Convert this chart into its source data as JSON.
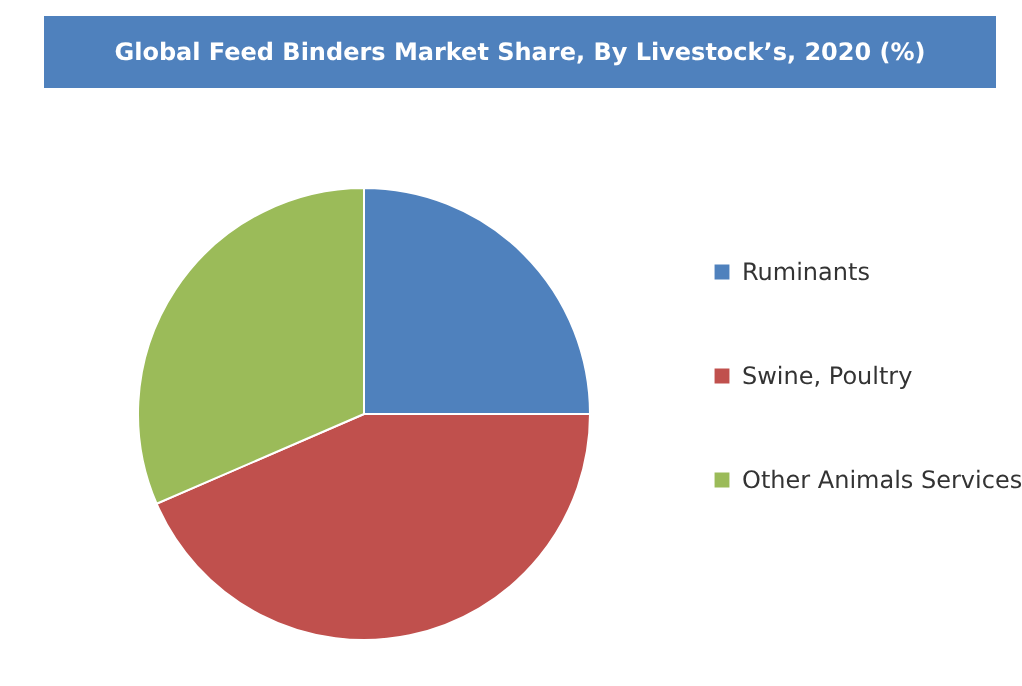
{
  "chart_data": {
    "type": "pie",
    "title": "Global Feed Binders Market Share, By Livestock’s, 2020 (%)",
    "categories": [
      "Ruminants",
      "Swine, Poultry",
      "Other Animals Services"
    ],
    "values": [
      25,
      43.5,
      31.5
    ],
    "colors": [
      "#4f81bd",
      "#c0504d",
      "#9bbb59"
    ],
    "legend": "right"
  }
}
